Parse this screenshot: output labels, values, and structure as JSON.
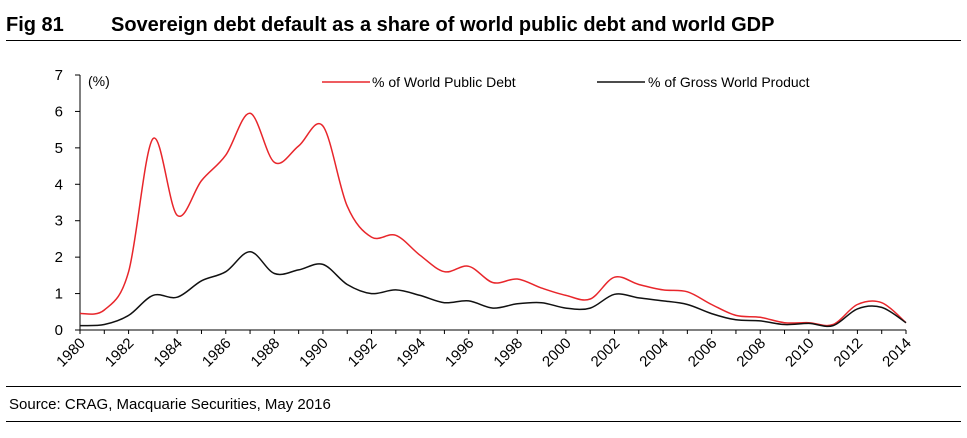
{
  "figure": {
    "number": "Fig 81",
    "title": "Sovereign debt default as a share of world public debt and world GDP",
    "source": "Source: CRAG, Macquarie Securities, May 2016"
  },
  "chart_data": {
    "type": "line",
    "ylabel": "(%)",
    "ylim": [
      0,
      7
    ],
    "yticks": [
      "0",
      "1",
      "2",
      "3",
      "4",
      "5",
      "6",
      "7"
    ],
    "xlim": [
      1980,
      2014
    ],
    "xticks": [
      "1980",
      "1982",
      "1984",
      "1986",
      "1988",
      "1990",
      "1992",
      "1994",
      "1996",
      "1998",
      "2000",
      "2002",
      "2004",
      "2006",
      "2008",
      "2010",
      "2012",
      "2014"
    ],
    "grid": false,
    "legend_position": "top",
    "series": [
      {
        "name": "% of World Public Debt",
        "color": "#e8262b",
        "x": [
          1980,
          1981,
          1982,
          1983,
          1984,
          1985,
          1986,
          1987,
          1988,
          1989,
          1990,
          1991,
          1992,
          1993,
          1994,
          1995,
          1996,
          1997,
          1998,
          1999,
          2000,
          2001,
          2002,
          2003,
          2004,
          2005,
          2006,
          2007,
          2008,
          2009,
          2010,
          2011,
          2012,
          2013,
          2014
        ],
        "y": [
          0.45,
          0.55,
          1.6,
          5.25,
          3.15,
          4.1,
          4.8,
          5.95,
          4.6,
          5.05,
          5.6,
          3.4,
          2.55,
          2.6,
          2.05,
          1.6,
          1.75,
          1.3,
          1.4,
          1.15,
          0.95,
          0.85,
          1.45,
          1.25,
          1.1,
          1.05,
          0.7,
          0.4,
          0.35,
          0.2,
          0.2,
          0.15,
          0.7,
          0.75,
          0.2
        ]
      },
      {
        "name": "% of Gross World Product",
        "color": "#111111",
        "x": [
          1980,
          1981,
          1982,
          1983,
          1984,
          1985,
          1986,
          1987,
          1988,
          1989,
          1990,
          1991,
          1992,
          1993,
          1994,
          1995,
          1996,
          1997,
          1998,
          1999,
          2000,
          2001,
          2002,
          2003,
          2004,
          2005,
          2006,
          2007,
          2008,
          2009,
          2010,
          2011,
          2012,
          2013,
          2014
        ],
        "y": [
          0.12,
          0.15,
          0.4,
          0.95,
          0.9,
          1.35,
          1.6,
          2.15,
          1.55,
          1.65,
          1.8,
          1.25,
          1.0,
          1.1,
          0.95,
          0.75,
          0.8,
          0.6,
          0.72,
          0.75,
          0.6,
          0.6,
          0.98,
          0.88,
          0.8,
          0.7,
          0.45,
          0.28,
          0.25,
          0.15,
          0.18,
          0.12,
          0.58,
          0.62,
          0.2
        ]
      }
    ]
  }
}
